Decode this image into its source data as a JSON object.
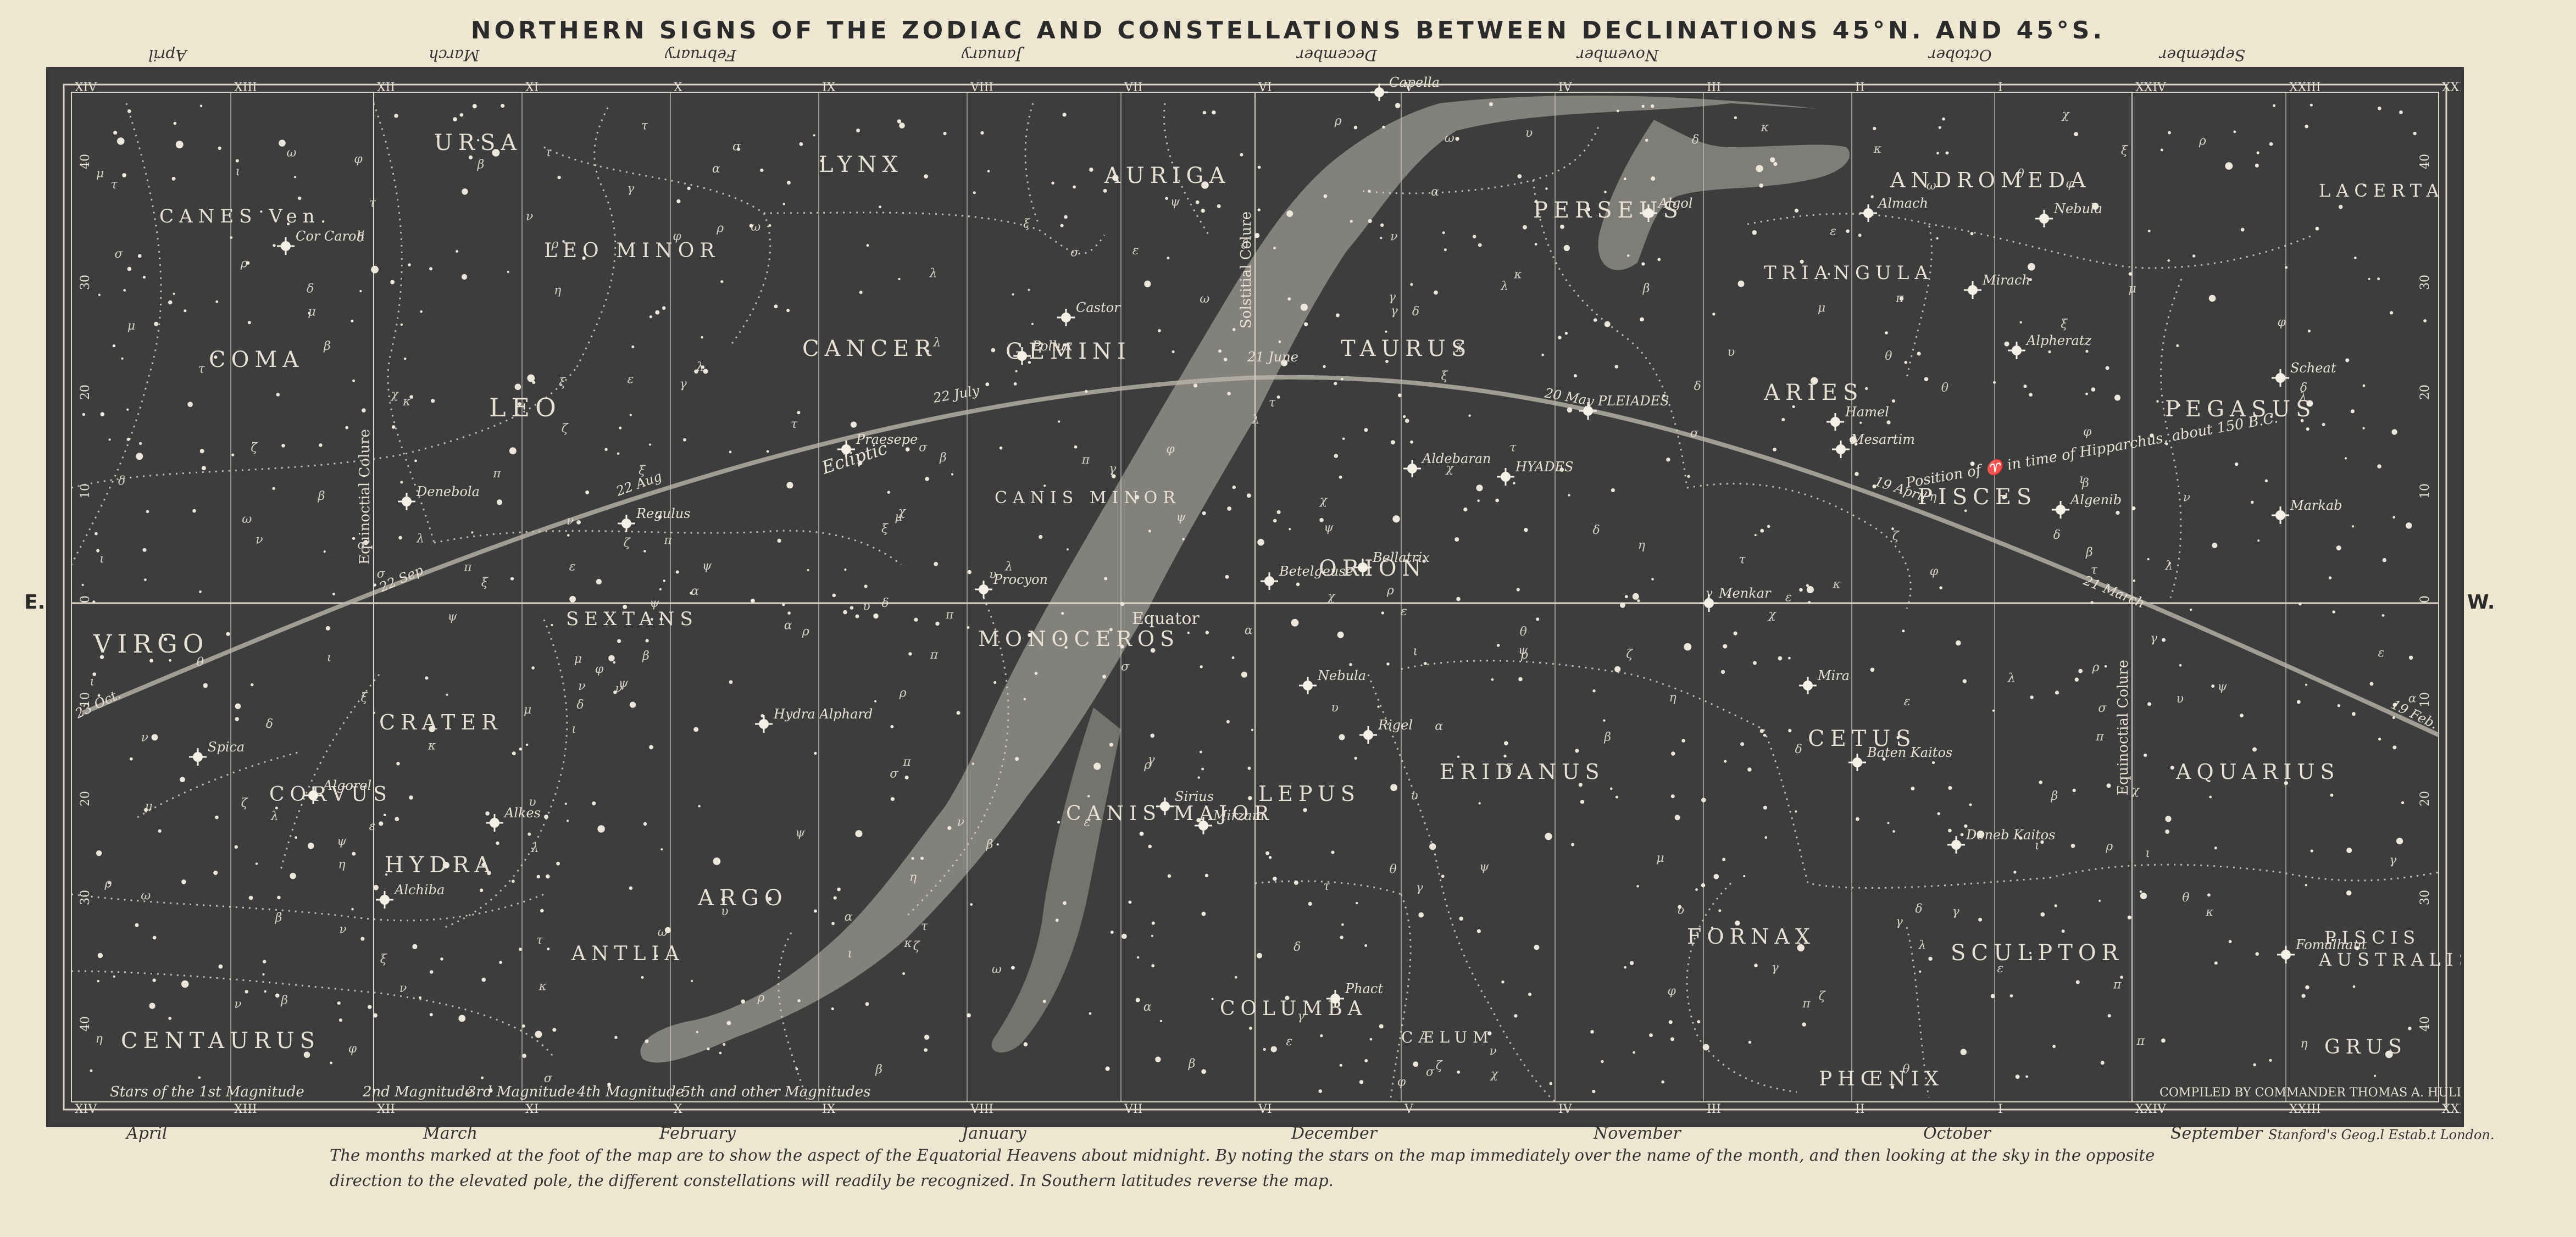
{
  "title": "NORTHERN SIGNS OF THE ZODIAC AND CONSTELLATIONS BETWEEN DECLINATIONS 45°N. AND 45°S.",
  "edges": {
    "east": "E.",
    "west": "W."
  },
  "months_top": [
    "April",
    "March",
    "February",
    "January",
    "December",
    "November",
    "October",
    "September"
  ],
  "months_bottom": [
    "April",
    "March",
    "February",
    "January",
    "December",
    "November",
    "October",
    "September"
  ],
  "hours": [
    "XIV",
    "XIII",
    "XII",
    "XI",
    "X",
    "IX",
    "VIII",
    "VII",
    "VI",
    "V",
    "IV",
    "III",
    "II",
    "I",
    "XXIV",
    "XXIII",
    "XXII"
  ],
  "declinations": [
    "40",
    "30",
    "20",
    "10",
    "0",
    "10",
    "20",
    "30",
    "40"
  ],
  "constellations": [
    {
      "name": "URSA"
    },
    {
      "name": "LYNX"
    },
    {
      "name": "AURIGA"
    },
    {
      "name": "PERSEUS"
    },
    {
      "name": "ANDROMEDA"
    },
    {
      "name": "LACERTA"
    },
    {
      "name": "CANES Ven."
    },
    {
      "name": "LEO MINOR"
    },
    {
      "name": "TRIANGULA"
    },
    {
      "name": "COMA"
    },
    {
      "name": "CANCER"
    },
    {
      "name": "GEMINI"
    },
    {
      "name": "TAURUS"
    },
    {
      "name": "ARIES"
    },
    {
      "name": "PEGASUS"
    },
    {
      "name": "LEO"
    },
    {
      "name": "CANIS MINOR"
    },
    {
      "name": "PISCES"
    },
    {
      "name": "ORION"
    },
    {
      "name": "SEXTANS"
    },
    {
      "name": "VIRGO"
    },
    {
      "name": "MONOCEROS"
    },
    {
      "name": "CRATER"
    },
    {
      "name": "CETUS"
    },
    {
      "name": "ERIDANUS"
    },
    {
      "name": "AQUARIUS"
    },
    {
      "name": "CORVUS"
    },
    {
      "name": "CANIS MAJOR"
    },
    {
      "name": "LEPUS"
    },
    {
      "name": "HYDRA"
    },
    {
      "name": "ARGO"
    },
    {
      "name": "FORNAX"
    },
    {
      "name": "ANTLIA"
    },
    {
      "name": "SCULPTOR"
    },
    {
      "name": "PISCIS"
    },
    {
      "name": "AUSTRALIS"
    },
    {
      "name": "COLUMBA"
    },
    {
      "name": "CÆLUM"
    },
    {
      "name": "CENTAURUS"
    },
    {
      "name": "GRUS"
    },
    {
      "name": "PHŒNIX"
    }
  ],
  "stars": [
    "Cor Caroli",
    "Capella",
    "Almach",
    "Nebula",
    "Algol",
    "Mirach",
    "Castor",
    "Pollux",
    "Alpheratz",
    "Scheat",
    "Hamel",
    "Mesartim",
    "PLEIADES",
    "Praesepe",
    "Aldebaran",
    "HYADES",
    "Denebola",
    "Regulus",
    "Markab",
    "Algenib",
    "Bellatrix",
    "Procyon",
    "Betelgeuse",
    "Menkar",
    "Mira",
    "Hydra Alphard",
    "Rigel",
    "Spica",
    "Algorel",
    "Alkes",
    "Sirius",
    "Mirzam",
    "Baten Kaitos",
    "Deneb Kaitos",
    "Alchiba",
    "Phact",
    "Fomalhaut",
    "Nebula"
  ],
  "map_labels": {
    "ecliptic": "Ecliptic",
    "equator": "Equator",
    "solstitial_colure": "Solstitial Colure",
    "equinoctial_colure_left": "Equinoctial Colure",
    "equinoctial_colure_right": "Equinoctial Colure",
    "position_note": "Position of ♈ in time of Hipparchus, about 150 B.C.",
    "date_21_june": "21 June",
    "date_22_july": "22 July",
    "date_22_aug": "22 Aug",
    "date_22_sep": "22 Sep",
    "date_23_oct": "23 Oct.",
    "date_20_may": "20 May",
    "date_19_april": "19 April",
    "date_21_march": "21 March",
    "date_19_feb": "19 Feb.",
    "compiled": "COMPILED BY COMMANDER THOMAS A. HULL R.N."
  },
  "magnitude_legend": [
    "Stars of the 1st Magnitude",
    "2nd Magnitude",
    "3rd Magnitude",
    "4th Magnitude",
    "5th and other Magnitudes"
  ],
  "footer_note": "The months marked at the foot of the map are to show the aspect of the Equatorial Heavens about midnight.   By noting the stars on the map immediately over the name of the month, and then looking at the sky in the opposite direction to the elevated pole, the different constellations will readily be recognized.   In Southern latitudes reverse the map.",
  "engraver": "Stanford's Geog.l Estab.t London.",
  "colors": {
    "sky": "#3d3d3d",
    "ink": "#e6e1d4",
    "paper": "#efe6d2",
    "milky_way": "#9a9890"
  }
}
